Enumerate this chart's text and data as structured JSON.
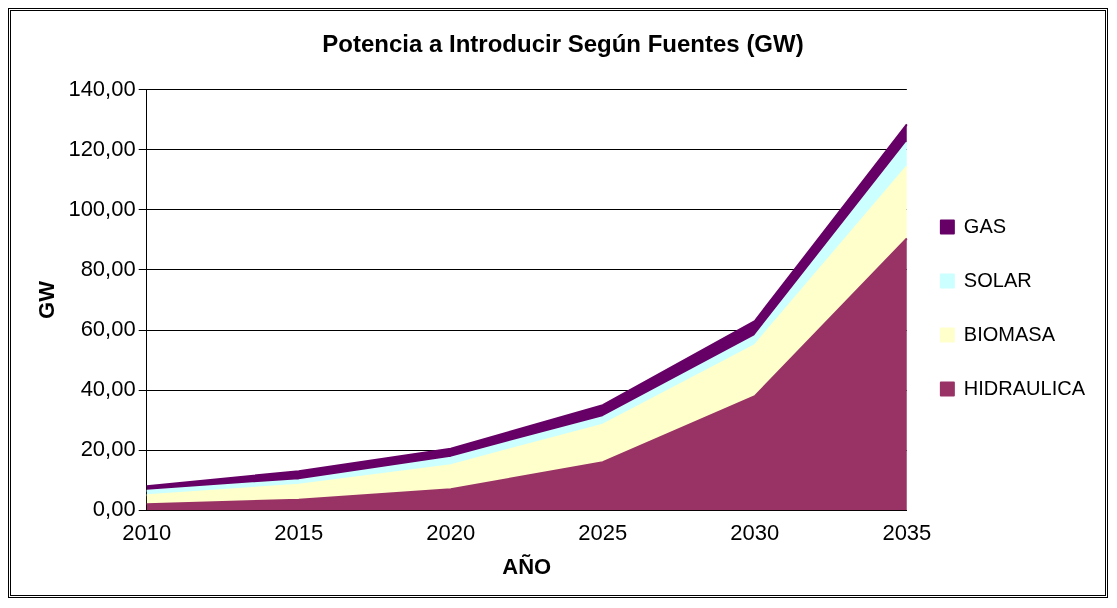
{
  "chart_data": {
    "type": "area",
    "title": "Potencia a Introducir Según Fuentes (GW)",
    "xlabel": "AÑO",
    "ylabel": "GW",
    "categories": [
      "2010",
      "2015",
      "2020",
      "2025",
      "2030",
      "2035"
    ],
    "stacked": true,
    "ylim": [
      0,
      140
    ],
    "yticks": [
      {
        "value": 0,
        "label": "0,00"
      },
      {
        "value": 20,
        "label": "20,00"
      },
      {
        "value": 40,
        "label": "40,00"
      },
      {
        "value": 60,
        "label": "60,00"
      },
      {
        "value": 80,
        "label": "80,00"
      },
      {
        "value": 100,
        "label": "100,00"
      },
      {
        "value": 120,
        "label": "120,00"
      },
      {
        "value": 140,
        "label": "140,00"
      }
    ],
    "grid": "y",
    "legend": "right",
    "series": [
      {
        "name": "HIDRAULICA",
        "color": "#993366",
        "values": [
          2,
          3.5,
          7,
          16,
          38,
          90.5
        ]
      },
      {
        "name": "BIOMASA",
        "color": "#ffffcc",
        "values": [
          3,
          5,
          8,
          12.5,
          17,
          24
        ]
      },
      {
        "name": "SOLAR",
        "color": "#ccffff",
        "values": [
          1.5,
          1.5,
          2.5,
          2.5,
          3,
          8
        ]
      },
      {
        "name": "GAS",
        "color": "#660066",
        "values": [
          1.5,
          3,
          3,
          4,
          5,
          6
        ]
      }
    ]
  }
}
